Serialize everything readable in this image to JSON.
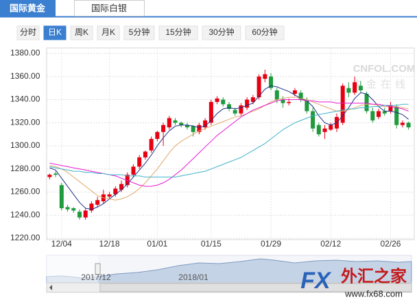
{
  "tabs": [
    "国际黄金",
    "国际白银"
  ],
  "active_tab": 0,
  "periods": [
    "分时",
    "日K",
    "周K",
    "月K",
    "5分钟",
    "15分钟",
    "30分钟",
    "60分钟"
  ],
  "active_period": 1,
  "watermark": {
    "site": "CNFOL.COM",
    "site_cn": "中金在线",
    "logo": "FX",
    "logo_cn": "外汇之家",
    "url": "www.fx68.com"
  },
  "navigator": {
    "labels": [
      "2017/12",
      "2018/01"
    ]
  },
  "chart_data": {
    "type": "candlestick",
    "categories": [
      null,
      null,
      "12/04",
      null,
      null,
      null,
      null,
      null,
      null,
      null,
      "12/18",
      null,
      null,
      null,
      null,
      null,
      null,
      null,
      "01/01",
      null,
      null,
      null,
      null,
      null,
      null,
      null,
      null,
      "01/15",
      null,
      null,
      null,
      null,
      null,
      null,
      null,
      null,
      null,
      "01/29",
      null,
      null,
      null,
      null,
      null,
      null,
      null,
      null,
      null,
      "02/12",
      null,
      null,
      null,
      null,
      null,
      null,
      null,
      null,
      null,
      "02/26",
      null,
      null,
      null
    ],
    "open": [
      1273,
      1276,
      1266,
      1247,
      1246,
      1243,
      1238,
      1244,
      1249,
      1252,
      1256,
      1258,
      1262,
      1266,
      1275,
      1282,
      1290,
      1296,
      1306,
      1312,
      1316,
      1322,
      1320,
      1318,
      1317,
      1312,
      1316,
      1320,
      1338,
      1340,
      1336,
      1331,
      1328,
      1333,
      1338,
      1342,
      1358,
      1360,
      1348,
      1340,
      1337,
      1345,
      1346,
      1339,
      1330,
      1318,
      1312,
      1314,
      1315,
      1320,
      1350,
      1346,
      1352,
      1345,
      1330,
      1325,
      1330,
      1330,
      1334,
      1318,
      1320
    ],
    "close": [
      1275,
      1275,
      1246,
      1245,
      1244,
      1238,
      1244,
      1250,
      1253,
      1258,
      1258,
      1263,
      1267,
      1275,
      1282,
      1290,
      1295,
      1306,
      1312,
      1318,
      1324,
      1320,
      1318,
      1316,
      1312,
      1318,
      1322,
      1338,
      1341,
      1336,
      1332,
      1328,
      1335,
      1340,
      1342,
      1360,
      1362,
      1350,
      1340,
      1337,
      1338,
      1348,
      1340,
      1330,
      1315,
      1310,
      1315,
      1318,
      1325,
      1352,
      1346,
      1355,
      1348,
      1330,
      1322,
      1330,
      1328,
      1335,
      1318,
      1320,
      1316
    ],
    "high": [
      1276,
      1278,
      1268,
      1249,
      1247,
      1245,
      1246,
      1252,
      1256,
      1262,
      1260,
      1265,
      1270,
      1277,
      1284,
      1292,
      1296,
      1308,
      1313,
      1320,
      1326,
      1324,
      1321,
      1320,
      1318,
      1320,
      1324,
      1340,
      1343,
      1342,
      1338,
      1333,
      1337,
      1342,
      1344,
      1362,
      1366,
      1363,
      1350,
      1343,
      1341,
      1350,
      1348,
      1342,
      1333,
      1320,
      1318,
      1320,
      1328,
      1354,
      1355,
      1360,
      1356,
      1347,
      1333,
      1332,
      1333,
      1338,
      1336,
      1322,
      1321
    ],
    "low": [
      1271,
      1273,
      1244,
      1243,
      1242,
      1236,
      1236,
      1242,
      1247,
      1250,
      1254,
      1256,
      1260,
      1264,
      1273,
      1280,
      1288,
      1294,
      1304,
      1300,
      1314,
      1318,
      1316,
      1314,
      1308,
      1310,
      1314,
      1318,
      1336,
      1334,
      1330,
      1326,
      1326,
      1331,
      1336,
      1340,
      1355,
      1348,
      1337,
      1333,
      1335,
      1343,
      1338,
      1328,
      1312,
      1308,
      1306,
      1313,
      1312,
      1318,
      1342,
      1344,
      1346,
      1328,
      1320,
      1323,
      1326,
      1328,
      1315,
      1316,
      1314
    ],
    "up_color": "#e60012",
    "down_color": "#1f9a3c",
    "series": [
      {
        "color": "#1c2f86",
        "values": [
          1281,
          1279,
          1272,
          1265,
          1258,
          1251,
          1246,
          1245,
          1247,
          1250,
          1254,
          1258,
          1262,
          1267,
          1273,
          1279,
          1285,
          1292,
          1300,
          1307,
          1313,
          1317,
          1318,
          1318,
          1317,
          1316,
          1317,
          1322,
          1328,
          1332,
          1333,
          1332,
          1333,
          1335,
          1337,
          1343,
          1349,
          1352,
          1351,
          1349,
          1347,
          1344,
          1341,
          1339,
          1334,
          1326,
          1320,
          1318,
          1320,
          1326,
          1333,
          1341,
          1346,
          1345,
          1340,
          1334,
          1330,
          1330,
          1329,
          1327,
          1323
        ]
      },
      {
        "color": "#e0a86a",
        "values": [
          1283,
          1282,
          1280,
          1277,
          1273,
          1269,
          1265,
          1261,
          1257,
          1255,
          1254,
          1253,
          1254,
          1256,
          1259,
          1263,
          1268,
          1274,
          1280,
          1287,
          1294,
          1300,
          1304,
          1307,
          1310,
          1313,
          1315,
          1317,
          1319,
          1321,
          1323,
          1325,
          1326,
          1328,
          1330,
          1332,
          1335,
          1338,
          1340,
          1341,
          1342,
          1342,
          1341,
          1340,
          1338,
          1336,
          1334,
          1332,
          1330,
          1330,
          1331,
          1333,
          1335,
          1336,
          1336,
          1335,
          1334,
          1334,
          1334,
          1333,
          1332
        ]
      },
      {
        "color": "#e619d2",
        "values": [
          1285,
          1284,
          1283,
          1282,
          1281,
          1280,
          1279,
          1278,
          1277,
          1276,
          1275,
          1274,
          1272,
          1270,
          1268,
          1266,
          1265,
          1265,
          1266,
          1268,
          1271,
          1275,
          1279,
          1284,
          1289,
          1294,
          1299,
          1304,
          1309,
          1313,
          1317,
          1321,
          1325,
          1328,
          1331,
          1333,
          1335,
          1337,
          1339,
          1340,
          1340,
          1340,
          1340,
          1339,
          1339,
          1338,
          1338,
          1338,
          1337,
          1337,
          1337,
          1337,
          1337,
          1337,
          1336,
          1336,
          1335,
          1334,
          1333,
          1332,
          1330
        ]
      },
      {
        "color": "#3fb1c9",
        "values": [
          1282,
          1281,
          1280,
          1279,
          1278,
          1278,
          1277,
          1277,
          1276,
          1276,
          1275,
          1275,
          1275,
          1274,
          1274,
          1274,
          1273,
          1273,
          1273,
          1273,
          1273,
          1273,
          1274,
          1275,
          1276,
          1277,
          1278,
          1280,
          1282,
          1284,
          1286,
          1288,
          1290,
          1293,
          1296,
          1299,
          1302,
          1306,
          1310,
          1314,
          1317,
          1320,
          1322,
          1324,
          1326,
          1327,
          1328,
          1329,
          1330,
          1331,
          1332,
          1332,
          1333,
          1333,
          1334,
          1334,
          1335,
          1335,
          1335,
          1336,
          1336
        ]
      }
    ],
    "ylim": [
      1220,
      1380
    ],
    "yticks": [
      {
        "value": 1220,
        "label": "1220.00"
      },
      {
        "value": 1240,
        "label": "1240.00"
      },
      {
        "value": 1260,
        "label": "1260.00"
      },
      {
        "value": 1280,
        "label": "1280.00"
      },
      {
        "value": 1300,
        "label": "1300.00"
      },
      {
        "value": 1320,
        "label": "1320.00"
      },
      {
        "value": 1340,
        "label": "1340.00"
      },
      {
        "value": 1360,
        "label": "1360.00"
      },
      {
        "value": 1380,
        "label": "1380.00"
      }
    ],
    "grid": true
  }
}
